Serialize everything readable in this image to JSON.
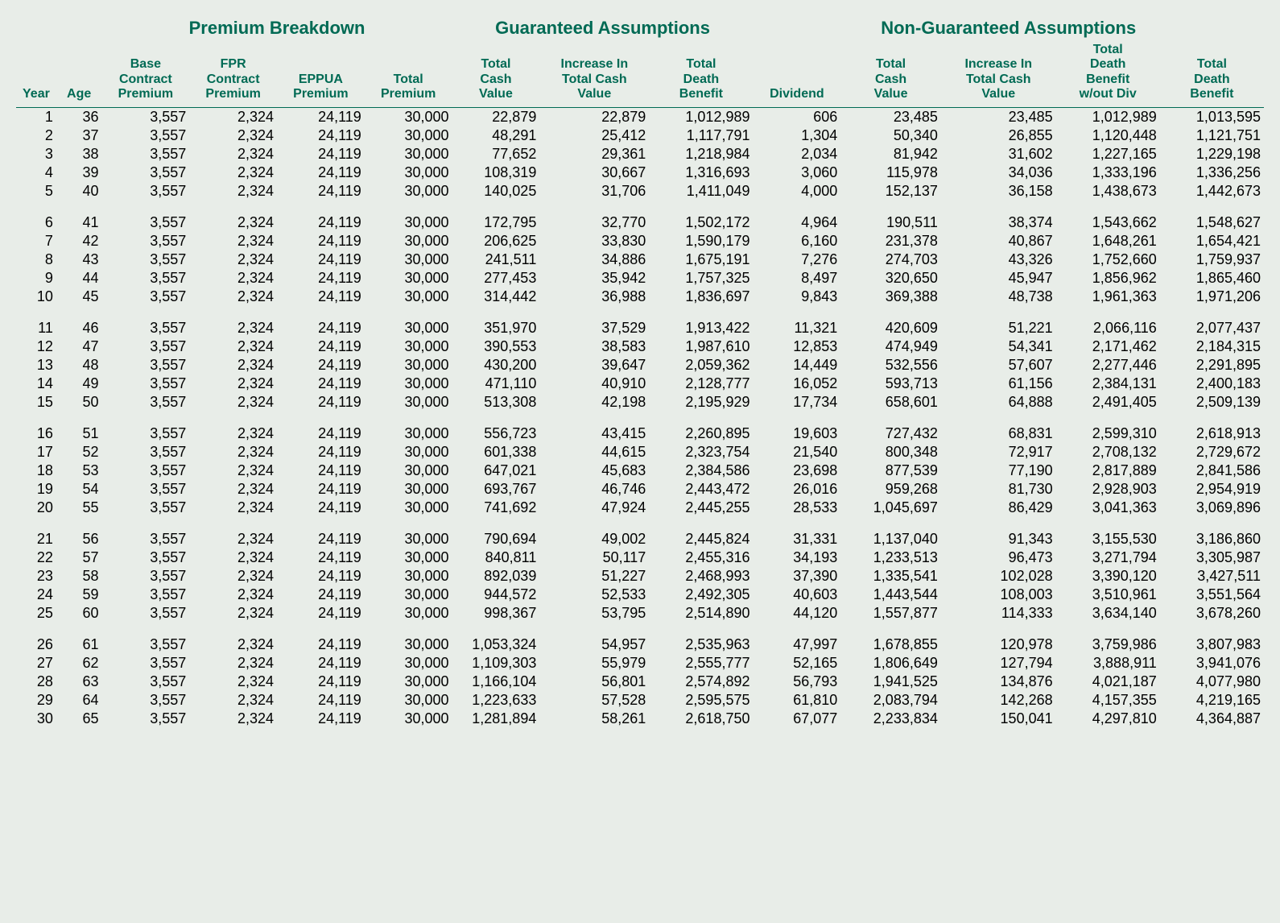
{
  "table": {
    "group_headers": {
      "premium": "Premium Breakdown",
      "guaranteed": "Guaranteed Assumptions",
      "nonguaranteed": "Non-Guaranteed Assumptions"
    },
    "col_headers": {
      "year": "Year",
      "age": "Age",
      "base": "Base\nContract\nPremium",
      "fpr": "FPR\nContract\nPremium",
      "eppua": "EPPUA\nPremium",
      "tprem": "Total\nPremium",
      "tcv1": "Total\nCash\nValue",
      "inc1": "Increase In\nTotal Cash\nValue",
      "tdb1": "Total\nDeath\nBenefit",
      "div": "Dividend",
      "tcv2": "Total\nCash\nValue",
      "inc2": "Increase In\nTotal Cash\nValue",
      "tdbwo": "Total\nDeath\nBenefit\nw/out Div",
      "tdb2": "Total\nDeath\nBenefit"
    },
    "header_color": "#006a54",
    "background_color": "#e8ede8",
    "font_size_body": 18,
    "font_size_group": 22,
    "font_size_sub": 16,
    "group_span": 5,
    "rows": [
      [
        1,
        36,
        "3,557",
        "2,324",
        "24,119",
        "30,000",
        "22,879",
        "22,879",
        "1,012,989",
        "606",
        "23,485",
        "23,485",
        "1,012,989",
        "1,013,595"
      ],
      [
        2,
        37,
        "3,557",
        "2,324",
        "24,119",
        "30,000",
        "48,291",
        "25,412",
        "1,117,791",
        "1,304",
        "50,340",
        "26,855",
        "1,120,448",
        "1,121,751"
      ],
      [
        3,
        38,
        "3,557",
        "2,324",
        "24,119",
        "30,000",
        "77,652",
        "29,361",
        "1,218,984",
        "2,034",
        "81,942",
        "31,602",
        "1,227,165",
        "1,229,198"
      ],
      [
        4,
        39,
        "3,557",
        "2,324",
        "24,119",
        "30,000",
        "108,319",
        "30,667",
        "1,316,693",
        "3,060",
        "115,978",
        "34,036",
        "1,333,196",
        "1,336,256"
      ],
      [
        5,
        40,
        "3,557",
        "2,324",
        "24,119",
        "30,000",
        "140,025",
        "31,706",
        "1,411,049",
        "4,000",
        "152,137",
        "36,158",
        "1,438,673",
        "1,442,673"
      ],
      [
        6,
        41,
        "3,557",
        "2,324",
        "24,119",
        "30,000",
        "172,795",
        "32,770",
        "1,502,172",
        "4,964",
        "190,511",
        "38,374",
        "1,543,662",
        "1,548,627"
      ],
      [
        7,
        42,
        "3,557",
        "2,324",
        "24,119",
        "30,000",
        "206,625",
        "33,830",
        "1,590,179",
        "6,160",
        "231,378",
        "40,867",
        "1,648,261",
        "1,654,421"
      ],
      [
        8,
        43,
        "3,557",
        "2,324",
        "24,119",
        "30,000",
        "241,511",
        "34,886",
        "1,675,191",
        "7,276",
        "274,703",
        "43,326",
        "1,752,660",
        "1,759,937"
      ],
      [
        9,
        44,
        "3,557",
        "2,324",
        "24,119",
        "30,000",
        "277,453",
        "35,942",
        "1,757,325",
        "8,497",
        "320,650",
        "45,947",
        "1,856,962",
        "1,865,460"
      ],
      [
        10,
        45,
        "3,557",
        "2,324",
        "24,119",
        "30,000",
        "314,442",
        "36,988",
        "1,836,697",
        "9,843",
        "369,388",
        "48,738",
        "1,961,363",
        "1,971,206"
      ],
      [
        11,
        46,
        "3,557",
        "2,324",
        "24,119",
        "30,000",
        "351,970",
        "37,529",
        "1,913,422",
        "11,321",
        "420,609",
        "51,221",
        "2,066,116",
        "2,077,437"
      ],
      [
        12,
        47,
        "3,557",
        "2,324",
        "24,119",
        "30,000",
        "390,553",
        "38,583",
        "1,987,610",
        "12,853",
        "474,949",
        "54,341",
        "2,171,462",
        "2,184,315"
      ],
      [
        13,
        48,
        "3,557",
        "2,324",
        "24,119",
        "30,000",
        "430,200",
        "39,647",
        "2,059,362",
        "14,449",
        "532,556",
        "57,607",
        "2,277,446",
        "2,291,895"
      ],
      [
        14,
        49,
        "3,557",
        "2,324",
        "24,119",
        "30,000",
        "471,110",
        "40,910",
        "2,128,777",
        "16,052",
        "593,713",
        "61,156",
        "2,384,131",
        "2,400,183"
      ],
      [
        15,
        50,
        "3,557",
        "2,324",
        "24,119",
        "30,000",
        "513,308",
        "42,198",
        "2,195,929",
        "17,734",
        "658,601",
        "64,888",
        "2,491,405",
        "2,509,139"
      ],
      [
        16,
        51,
        "3,557",
        "2,324",
        "24,119",
        "30,000",
        "556,723",
        "43,415",
        "2,260,895",
        "19,603",
        "727,432",
        "68,831",
        "2,599,310",
        "2,618,913"
      ],
      [
        17,
        52,
        "3,557",
        "2,324",
        "24,119",
        "30,000",
        "601,338",
        "44,615",
        "2,323,754",
        "21,540",
        "800,348",
        "72,917",
        "2,708,132",
        "2,729,672"
      ],
      [
        18,
        53,
        "3,557",
        "2,324",
        "24,119",
        "30,000",
        "647,021",
        "45,683",
        "2,384,586",
        "23,698",
        "877,539",
        "77,190",
        "2,817,889",
        "2,841,586"
      ],
      [
        19,
        54,
        "3,557",
        "2,324",
        "24,119",
        "30,000",
        "693,767",
        "46,746",
        "2,443,472",
        "26,016",
        "959,268",
        "81,730",
        "2,928,903",
        "2,954,919"
      ],
      [
        20,
        55,
        "3,557",
        "2,324",
        "24,119",
        "30,000",
        "741,692",
        "47,924",
        "2,445,255",
        "28,533",
        "1,045,697",
        "86,429",
        "3,041,363",
        "3,069,896"
      ],
      [
        21,
        56,
        "3,557",
        "2,324",
        "24,119",
        "30,000",
        "790,694",
        "49,002",
        "2,445,824",
        "31,331",
        "1,137,040",
        "91,343",
        "3,155,530",
        "3,186,860"
      ],
      [
        22,
        57,
        "3,557",
        "2,324",
        "24,119",
        "30,000",
        "840,811",
        "50,117",
        "2,455,316",
        "34,193",
        "1,233,513",
        "96,473",
        "3,271,794",
        "3,305,987"
      ],
      [
        23,
        58,
        "3,557",
        "2,324",
        "24,119",
        "30,000",
        "892,039",
        "51,227",
        "2,468,993",
        "37,390",
        "1,335,541",
        "102,028",
        "3,390,120",
        "3,427,511"
      ],
      [
        24,
        59,
        "3,557",
        "2,324",
        "24,119",
        "30,000",
        "944,572",
        "52,533",
        "2,492,305",
        "40,603",
        "1,443,544",
        "108,003",
        "3,510,961",
        "3,551,564"
      ],
      [
        25,
        60,
        "3,557",
        "2,324",
        "24,119",
        "30,000",
        "998,367",
        "53,795",
        "2,514,890",
        "44,120",
        "1,557,877",
        "114,333",
        "3,634,140",
        "3,678,260"
      ],
      [
        26,
        61,
        "3,557",
        "2,324",
        "24,119",
        "30,000",
        "1,053,324",
        "54,957",
        "2,535,963",
        "47,997",
        "1,678,855",
        "120,978",
        "3,759,986",
        "3,807,983"
      ],
      [
        27,
        62,
        "3,557",
        "2,324",
        "24,119",
        "30,000",
        "1,109,303",
        "55,979",
        "2,555,777",
        "52,165",
        "1,806,649",
        "127,794",
        "3,888,911",
        "3,941,076"
      ],
      [
        28,
        63,
        "3,557",
        "2,324",
        "24,119",
        "30,000",
        "1,166,104",
        "56,801",
        "2,574,892",
        "56,793",
        "1,941,525",
        "134,876",
        "4,021,187",
        "4,077,980"
      ],
      [
        29,
        64,
        "3,557",
        "2,324",
        "24,119",
        "30,000",
        "1,223,633",
        "57,528",
        "2,595,575",
        "61,810",
        "2,083,794",
        "142,268",
        "4,157,355",
        "4,219,165"
      ],
      [
        30,
        65,
        "3,557",
        "2,324",
        "24,119",
        "30,000",
        "1,281,894",
        "58,261",
        "2,618,750",
        "67,077",
        "2,233,834",
        "150,041",
        "4,297,810",
        "4,364,887"
      ]
    ]
  }
}
